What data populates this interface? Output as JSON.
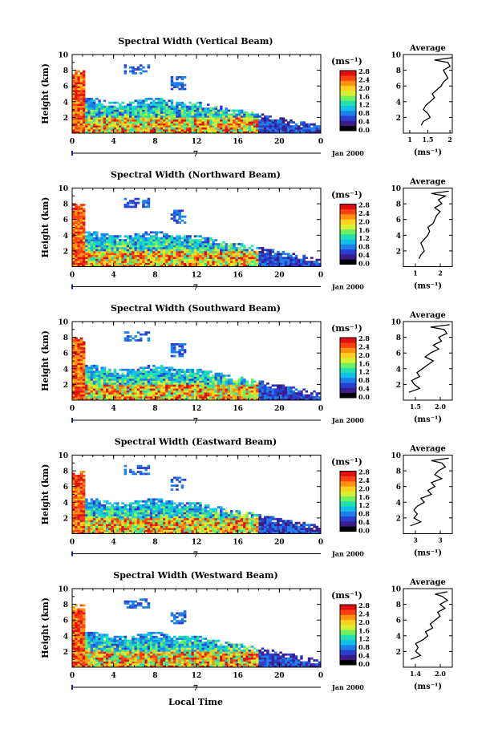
{
  "figure": {
    "xlabel": "Local Time",
    "date_label": "Jan 2000",
    "day_marker": "7",
    "x_ticks": [
      "0",
      "4",
      "8",
      "12",
      "16",
      "20",
      "0"
    ],
    "ylabel": "Height (km)",
    "y_ticks": [
      "2",
      "4",
      "6",
      "8",
      "10"
    ],
    "unit_label": "(ms⁻¹)",
    "average_title": "Average",
    "colorbar_ticks": [
      "0.0",
      "0.4",
      "0.8",
      "1.2",
      "1.6",
      "2.0",
      "2.4",
      "2.8"
    ],
    "colorbar_colors": [
      "#000000",
      "#3a1c8c",
      "#2a3fd0",
      "#1f7fe8",
      "#10c0e8",
      "#20e0b0",
      "#70f060",
      "#d8f030",
      "#ffd020",
      "#ff9010",
      "#ff4010",
      "#e01010"
    ]
  },
  "chart_data": [
    {
      "type": "heatmap",
      "title": "Spectral Width (Vertical Beam)",
      "xlabel": "Local Time",
      "ylabel": "Height (km)",
      "xlim": [
        0,
        24
      ],
      "ylim": [
        0,
        10
      ],
      "colorbar": {
        "label": "(ms⁻¹)",
        "range": [
          0.0,
          2.8
        ]
      },
      "average": {
        "title": "Average",
        "xlabel": "(ms⁻¹)",
        "xlim": [
          0.9,
          2.0
        ],
        "x_ticks": [
          "1",
          "1.5",
          "2"
        ],
        "height": [
          1,
          1.5,
          2,
          2.5,
          3,
          3.5,
          4,
          4.5,
          5,
          5.5,
          6,
          6.5,
          7,
          7.5,
          8,
          8.5,
          9,
          9.3,
          9.6
        ],
        "values": [
          1.3,
          1.35,
          1.5,
          1.45,
          1.35,
          1.4,
          1.5,
          1.6,
          1.55,
          1.65,
          1.75,
          1.8,
          1.9,
          1.85,
          1.8,
          1.95,
          1.9,
          1.6,
          2.0
        ]
      }
    },
    {
      "type": "heatmap",
      "title": "Spectral Width (Northward Beam)",
      "xlabel": "Local Time",
      "ylabel": "Height (km)",
      "xlim": [
        0,
        24
      ],
      "ylim": [
        0,
        10
      ],
      "colorbar": {
        "label": "(ms⁻¹)",
        "range": [
          0.0,
          2.8
        ]
      },
      "average": {
        "title": "Average",
        "xlabel": "(ms⁻¹)",
        "xlim": [
          1.0,
          2.4
        ],
        "x_ticks": [
          "1",
          "2"
        ],
        "height": [
          1,
          1.5,
          2,
          2.5,
          3,
          3.5,
          4,
          4.5,
          5,
          5.5,
          6,
          6.5,
          7,
          7.5,
          8,
          8.5,
          9,
          9.3,
          9.6
        ],
        "values": [
          1.45,
          1.5,
          1.6,
          1.55,
          1.5,
          1.6,
          1.7,
          1.75,
          1.7,
          1.85,
          1.9,
          1.95,
          2.05,
          1.9,
          2.1,
          2.0,
          2.2,
          1.8,
          2.3
        ]
      }
    },
    {
      "type": "heatmap",
      "title": "Spectral Width (Southward Beam)",
      "xlabel": "Local Time",
      "ylabel": "Height (km)",
      "xlim": [
        0,
        24
      ],
      "ylim": [
        0,
        10
      ],
      "colorbar": {
        "label": "(ms⁻¹)",
        "range": [
          0.0,
          2.8
        ]
      },
      "average": {
        "title": "Average",
        "xlabel": "(ms⁻¹)",
        "xlim": [
          1.3,
          2.2
        ],
        "x_ticks": [
          "1.5",
          "2.0"
        ],
        "height": [
          1,
          1.5,
          2,
          2.5,
          3,
          3.5,
          4,
          4.5,
          5,
          5.5,
          6,
          6.5,
          7,
          7.5,
          8,
          8.5,
          9,
          9.3,
          9.6
        ],
        "values": [
          1.4,
          1.6,
          1.5,
          1.45,
          1.6,
          1.55,
          1.65,
          1.75,
          1.85,
          1.7,
          1.8,
          1.95,
          1.85,
          2.0,
          1.95,
          2.1,
          2.05,
          1.8,
          2.15
        ]
      }
    },
    {
      "type": "heatmap",
      "title": "Spectral Width (Eastward Beam)",
      "xlabel": "Local Time",
      "ylabel": "Height (km)",
      "xlim": [
        0,
        24
      ],
      "ylim": [
        0,
        10
      ],
      "colorbar": {
        "label": "(ms⁻¹)",
        "range": [
          0.0,
          2.8
        ]
      },
      "average": {
        "title": "Average",
        "xlabel": "(ms⁻¹)",
        "xlim": [
          2.4,
          3.1
        ],
        "x_ticks": [
          "3",
          "3"
        ],
        "height": [
          1,
          1.5,
          2,
          2.5,
          3,
          3.5,
          4,
          4.5,
          5,
          5.5,
          6,
          6.5,
          7,
          7.5,
          8,
          8.5,
          9,
          9.3,
          9.6
        ],
        "values": [
          2.5,
          2.65,
          2.55,
          2.6,
          2.55,
          2.6,
          2.7,
          2.65,
          2.8,
          2.75,
          2.85,
          2.8,
          2.95,
          2.85,
          2.9,
          3.0,
          2.95,
          2.8,
          3.05
        ]
      }
    },
    {
      "type": "heatmap",
      "title": "Spectral Width (Westward Beam)",
      "xlabel": "Local Time",
      "ylabel": "Height (km)",
      "xlim": [
        0,
        24
      ],
      "ylim": [
        0,
        10
      ],
      "colorbar": {
        "label": "(ms⁻¹)",
        "range": [
          0.0,
          2.8
        ]
      },
      "average": {
        "title": "Average",
        "xlabel": "(ms⁻¹)",
        "xlim": [
          1.2,
          2.2
        ],
        "x_ticks": [
          "1.4",
          "2.0"
        ],
        "height": [
          1,
          1.5,
          2,
          2.5,
          3,
          3.5,
          4,
          4.5,
          5,
          5.5,
          6,
          6.5,
          7,
          7.5,
          8,
          8.5,
          9,
          9.3,
          9.6
        ],
        "values": [
          1.35,
          1.55,
          1.45,
          1.5,
          1.45,
          1.6,
          1.7,
          1.65,
          1.8,
          1.75,
          1.85,
          1.95,
          1.9,
          2.05,
          1.95,
          2.1,
          2.0,
          1.85,
          2.1
        ]
      }
    }
  ]
}
